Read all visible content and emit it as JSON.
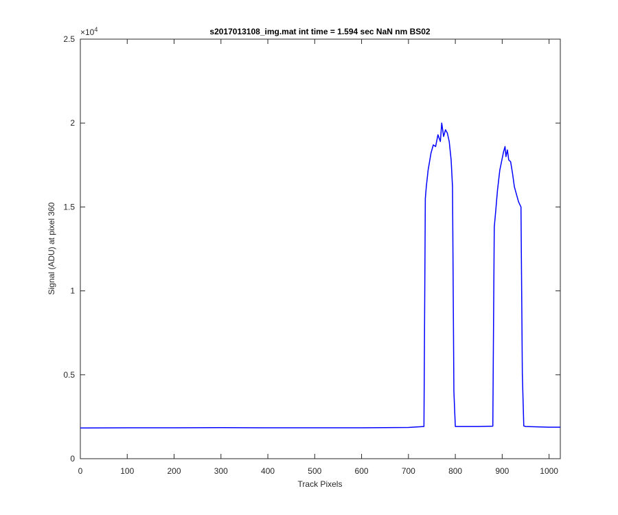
{
  "chart_data": {
    "type": "line",
    "title": "s2017013108_img.mat int time = 1.594 sec  NaN nm BS02",
    "xlabel": "Track Pixels",
    "ylabel": "Signal (ADU) at pixel 360",
    "y_exponent_label": "×10",
    "y_exponent_power": "4",
    "xlim": [
      0,
      1024
    ],
    "ylim": [
      0,
      2.5
    ],
    "x_ticks": [
      0,
      100,
      200,
      300,
      400,
      500,
      600,
      700,
      800,
      900,
      1000
    ],
    "y_ticks": [
      0,
      0.5,
      1,
      1.5,
      2,
      2.5
    ],
    "x_tick_labels": [
      "0",
      "100",
      "200",
      "300",
      "400",
      "500",
      "600",
      "700",
      "800",
      "900",
      "1000"
    ],
    "y_tick_labels": [
      "0",
      "0.5",
      "1",
      "1.5",
      "2",
      "2.5"
    ],
    "grid": false,
    "line_color": "#0000ff",
    "series": [
      {
        "x": [
          0,
          100,
          200,
          300,
          400,
          500,
          600,
          700,
          733,
          736,
          738,
          742,
          748,
          753,
          758,
          763,
          768,
          771,
          775,
          779,
          783,
          787,
          791,
          794,
          797,
          800,
          850,
          880,
          881,
          883,
          886,
          890,
          895,
          900,
          903,
          906,
          908,
          911,
          914,
          918,
          922,
          926,
          930,
          935,
          940,
          943,
          946,
          950,
          1000,
          1024
        ],
        "y": [
          0.183,
          0.184,
          0.184,
          0.185,
          0.184,
          0.184,
          0.184,
          0.186,
          0.192,
          1.55,
          1.62,
          1.72,
          1.82,
          1.87,
          1.86,
          1.93,
          1.89,
          2.0,
          1.92,
          1.96,
          1.94,
          1.89,
          1.78,
          1.62,
          0.4,
          0.192,
          0.192,
          0.194,
          0.6,
          1.38,
          1.47,
          1.6,
          1.72,
          1.79,
          1.83,
          1.86,
          1.8,
          1.84,
          1.78,
          1.77,
          1.7,
          1.62,
          1.58,
          1.53,
          1.5,
          0.5,
          0.195,
          0.192,
          0.188,
          0.188
        ]
      }
    ]
  }
}
